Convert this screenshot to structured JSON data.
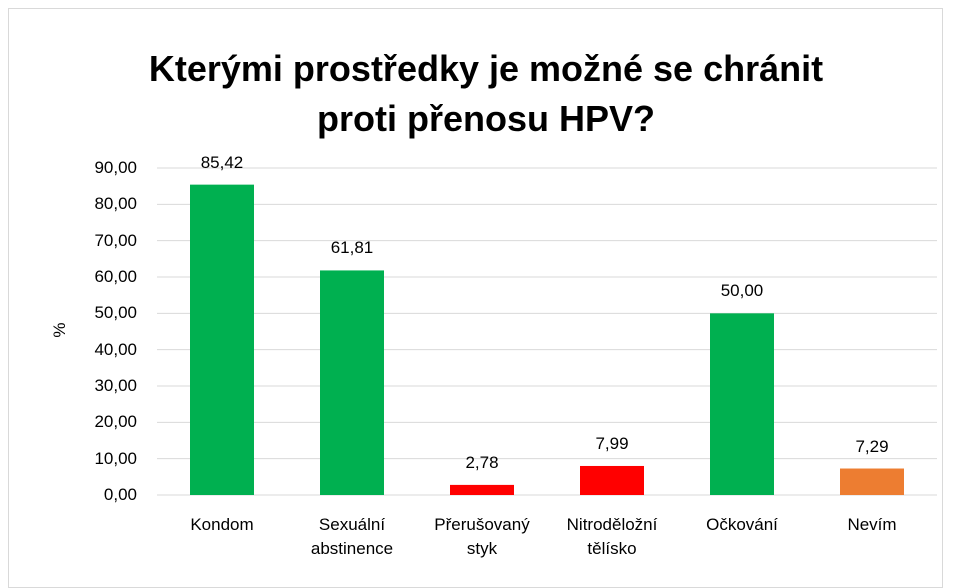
{
  "chart_data": {
    "type": "bar",
    "title": "Kterými prostředky je možné se chránit proti přenosu HPV?",
    "ylabel": "%",
    "categories": [
      "Kondom",
      "Sexuální abstinence",
      "Přerušovaný styk",
      "Nitroděložní tělísko",
      "Očkování",
      "Nevím"
    ],
    "values": [
      85.42,
      61.81,
      2.78,
      7.99,
      50,
      7.29
    ],
    "value_labels": [
      "85,42",
      "61,81",
      "2,78",
      "7,99",
      "50,00",
      "7,29"
    ],
    "colors": [
      "#00b050",
      "#00b050",
      "#ff0000",
      "#ff0000",
      "#00b050",
      "#ed7d31"
    ],
    "ylim": [
      0,
      90
    ],
    "yticks": [
      {
        "value": 0,
        "label": "0,00"
      },
      {
        "value": 10,
        "label": "10,00"
      },
      {
        "value": 20,
        "label": "20,00"
      },
      {
        "value": 30,
        "label": "30,00"
      },
      {
        "value": 40,
        "label": "40,00"
      },
      {
        "value": 50,
        "label": "50,00"
      },
      {
        "value": 60,
        "label": "60,00"
      },
      {
        "value": 70,
        "label": "70,00"
      },
      {
        "value": 80,
        "label": "80,00"
      },
      {
        "value": 90,
        "label": "90,00"
      }
    ],
    "grid": true
  }
}
